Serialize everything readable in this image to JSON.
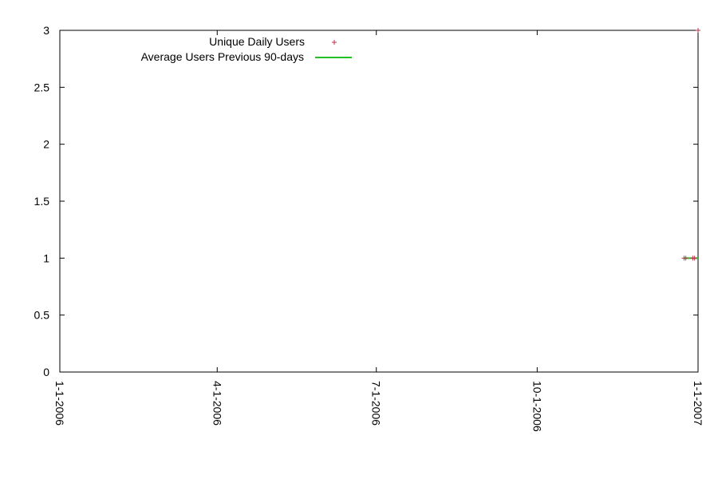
{
  "chart_data": {
    "type": "scatter",
    "title": "",
    "xlabel": "",
    "ylabel": "",
    "xlim": [
      "2006-01-01",
      "2007-01-01"
    ],
    "ylim": [
      0,
      3
    ],
    "x_ticks": [
      "1-1-2006",
      "4-1-2006",
      "7-1-2006",
      "10-1-2006",
      "1-1-2007"
    ],
    "x_tick_dates": [
      "2006-01-01",
      "2006-04-01",
      "2006-07-01",
      "2006-10-01",
      "2007-01-01"
    ],
    "y_ticks": [
      "0",
      "0.5",
      "1",
      "1.5",
      "2",
      "2.5",
      "3"
    ],
    "y_tick_values": [
      0,
      0.5,
      1,
      1.5,
      2,
      2.5,
      3
    ],
    "grid": false,
    "legend_position": "top-left",
    "series": [
      {
        "name": "Unique Daily Users",
        "style": "points",
        "marker": "plus",
        "color": "#c0304a",
        "points": [
          {
            "x": "2006-12-24",
            "y": 1
          },
          {
            "x": "2006-12-25",
            "y": 1
          },
          {
            "x": "2006-12-29",
            "y": 1
          },
          {
            "x": "2006-12-30",
            "y": 1
          },
          {
            "x": "2007-01-01",
            "y": 3
          }
        ]
      },
      {
        "name": "Average Users Previous 90-days",
        "style": "line",
        "color": "#22c022",
        "points": [
          {
            "x": "2006-12-24",
            "y": 1
          },
          {
            "x": "2007-01-01",
            "y": 1
          }
        ]
      }
    ]
  }
}
